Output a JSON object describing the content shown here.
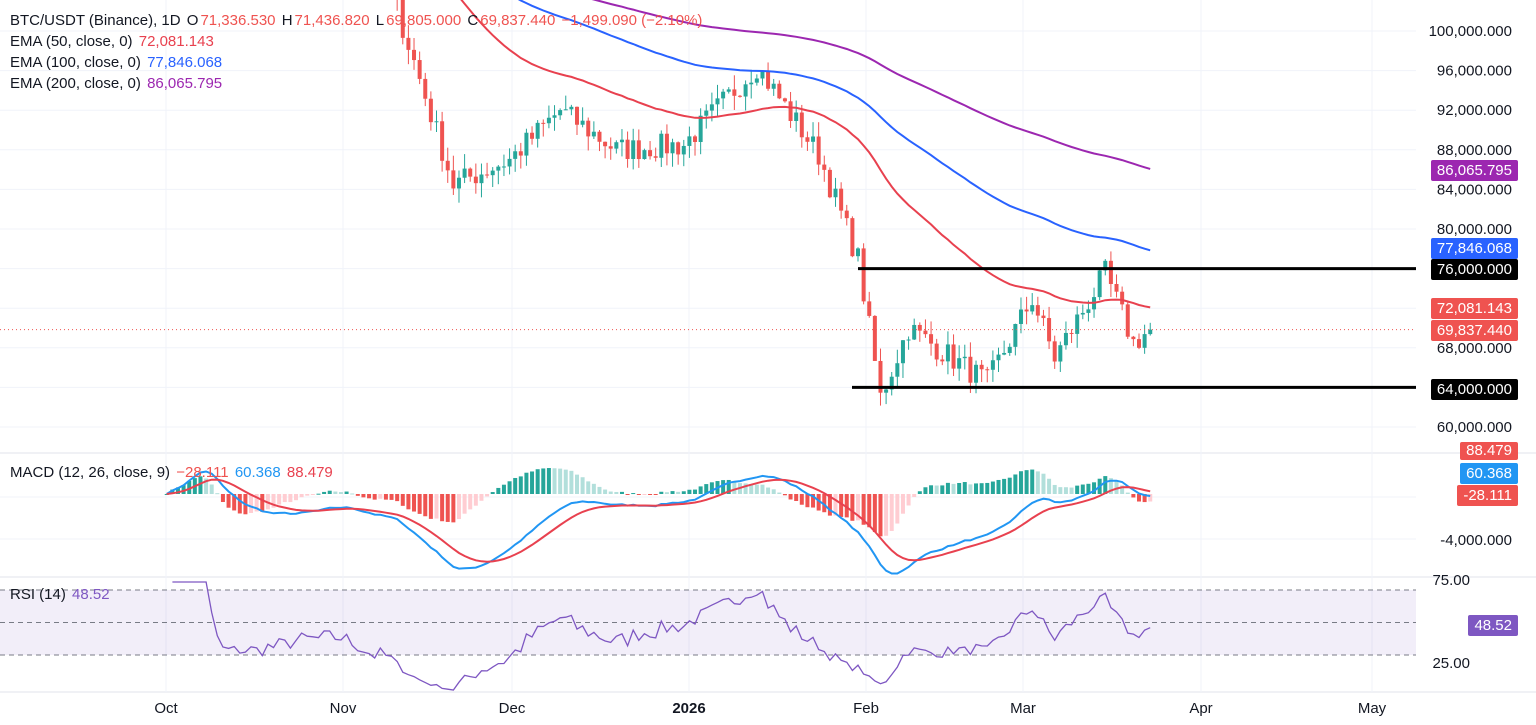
{
  "header": {
    "symbol": "BTC/USDT (Binance), 1D",
    "o_label": "O",
    "open": "71,336.530",
    "h_label": "H",
    "high": "71,436.820",
    "l_label": "L",
    "low": "69,805.000",
    "c_label": "C",
    "close": "69,837.440",
    "change": "−1,499.090 (−2.10%)"
  },
  "indicators": {
    "ema50": {
      "label": "EMA (50, close, 0)",
      "value": "72,081.143",
      "color": "#e8414f"
    },
    "ema100": {
      "label": "EMA (100, close, 0)",
      "value": "77,846.068",
      "color": "#2962ff"
    },
    "ema200": {
      "label": "EMA (200, close, 0)",
      "value": "86,065.795",
      "color": "#9c27b0"
    },
    "macd": {
      "label": "MACD (12, 26, close, 9)",
      "hist": "−28.111",
      "macd": "60.368",
      "signal": "88.479",
      "macd_color": "#2196f3",
      "signal_color": "#e8414f"
    },
    "rsi": {
      "label": "RSI (14)",
      "value": "48.52",
      "color": "#7e57c2"
    }
  },
  "price_axis": [
    "100,000.000",
    "96,000.000",
    "92,000.000",
    "88,000.000",
    "84,000.000",
    "80,000.000",
    "76,000.000",
    "72,000.000",
    "68,000.000",
    "64,000.000",
    "60,000.000"
  ],
  "macd_axis": [
    "-4,000.000"
  ],
  "rsi_axis": [
    "75.00",
    "25.00"
  ],
  "time_axis": [
    "Oct",
    "Nov",
    "Dec",
    "2026",
    "Feb",
    "Mar",
    "Apr",
    "May"
  ],
  "tags": {
    "ema200": "86,065.795",
    "ema100": "77,846.068",
    "level_high": "76,000.000",
    "ema50": "72,081.143",
    "last": "69,837.440",
    "level_low": "64,000.000",
    "macd_signal": "88.479",
    "macd_line": "60.368",
    "macd_hist": "-28.111",
    "rsi": "48.52"
  },
  "colors": {
    "up": "#26a69a",
    "down": "#ef5350",
    "level": "#000000"
  },
  "chart_data": {
    "type": "candlestick",
    "title": "BTC/USDT (Binance), 1D",
    "ylim": [
      58000,
      104000
    ],
    "horizontal_levels": [
      76000,
      64000
    ],
    "last_price": 69837.44,
    "closes_approx": [
      {
        "date": "2025-11-01",
        "close": 110000
      },
      {
        "date": "2025-11-10",
        "close": 104000
      },
      {
        "date": "2025-11-21",
        "close": 84500
      },
      {
        "date": "2025-12-01",
        "close": 87000
      },
      {
        "date": "2025-12-10",
        "close": 92000
      },
      {
        "date": "2025-12-20",
        "close": 88000
      },
      {
        "date": "2026-01-01",
        "close": 88500
      },
      {
        "date": "2026-01-14",
        "close": 96500
      },
      {
        "date": "2026-01-25",
        "close": 87500
      },
      {
        "date": "2026-02-01",
        "close": 77000
      },
      {
        "date": "2026-02-05",
        "close": 63000
      },
      {
        "date": "2026-02-10",
        "close": 70000
      },
      {
        "date": "2026-02-24",
        "close": 64500
      },
      {
        "date": "2026-03-04",
        "close": 73000
      },
      {
        "date": "2026-03-08",
        "close": 67000
      },
      {
        "date": "2026-03-17",
        "close": 75500
      },
      {
        "date": "2026-03-22",
        "close": 68500
      },
      {
        "date": "2026-03-25",
        "close": 69837
      }
    ],
    "ema": [
      {
        "name": "EMA (50, close, 0)",
        "last": 72081.143
      },
      {
        "name": "EMA (100, close, 0)",
        "last": 77846.068
      },
      {
        "name": "EMA (200, close, 0)",
        "last": 86065.795
      }
    ],
    "macd_last": {
      "hist": -28.111,
      "macd": 60.368,
      "signal": 88.479
    },
    "rsi_last": 48.52,
    "rsi_bands": [
      70,
      50,
      30
    ]
  }
}
